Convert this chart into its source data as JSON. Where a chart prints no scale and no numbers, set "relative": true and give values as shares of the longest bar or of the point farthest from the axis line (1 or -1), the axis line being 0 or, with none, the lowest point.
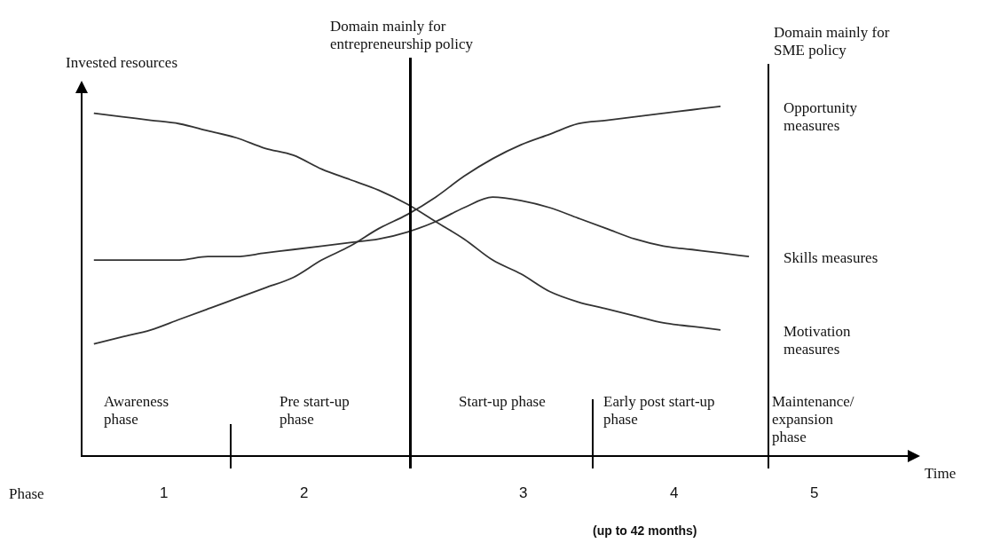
{
  "chart_data": {
    "type": "line",
    "relative": true,
    "ylabel": "Invested resources",
    "categories": [
      null,
      null,
      null,
      null,
      null,
      null,
      null,
      null,
      null,
      null,
      null,
      null,
      null,
      null,
      null,
      null,
      null,
      null,
      null,
      null,
      null,
      null,
      null,
      null
    ],
    "series": [
      {
        "name": "Opportunity measures",
        "color": "#333333",
        "values": [
          0.32,
          0.34,
          0.36,
          0.39,
          0.42,
          0.45,
          0.48,
          0.51,
          0.56,
          0.6,
          0.65,
          0.69,
          0.74,
          0.8,
          0.85,
          0.89,
          0.92,
          0.95,
          0.96,
          0.97,
          0.98,
          0.99,
          1,
          null
        ]
      },
      {
        "name": "Skills measures",
        "color": "#333333",
        "values": [
          0.56,
          0.56,
          0.56,
          0.56,
          0.57,
          0.57,
          0.58,
          0.59,
          0.6,
          0.61,
          0.62,
          0.64,
          0.67,
          0.71,
          0.74,
          0.73,
          0.71,
          0.68,
          0.65,
          0.62,
          0.6,
          0.59,
          0.58,
          0.57
        ]
      },
      {
        "name": "Motivation measures",
        "color": "#333333",
        "values": [
          0.98,
          0.97,
          0.96,
          0.95,
          0.93,
          0.91,
          0.88,
          0.86,
          0.82,
          0.79,
          0.76,
          0.72,
          0.67,
          0.62,
          0.56,
          0.52,
          0.47,
          0.44,
          0.42,
          0.4,
          0.38,
          0.37,
          0.36,
          null
        ]
      }
    ],
    "annotations": [
      "Domain mainly for entrepreneurship policy",
      "Domain mainly for SME policy",
      "Awareness phase",
      "Pre start-up phase",
      "Start-up phase",
      "Early post start-up phase",
      "Maintenance/ expansion phase",
      "Phase",
      "1",
      "2",
      "3",
      "4",
      "5",
      "(up to 42 months)",
      "Time"
    ]
  }
}
